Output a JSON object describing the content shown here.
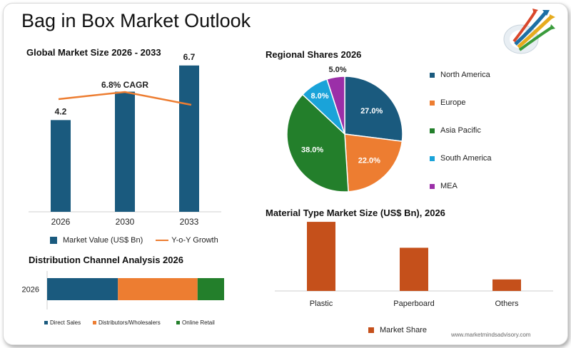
{
  "page": {
    "title": "Bag in Box Market Outlook",
    "footer": "www.marketmindsadvisory.com"
  },
  "colors": {
    "bar": "#1a5a7e",
    "growth_line": "#ed7d31",
    "north_america": "#1a5a7e",
    "europe": "#ed7d31",
    "asia_pacific": "#237f2b",
    "south_america": "#1aa3d9",
    "mea": "#9b2fa8",
    "material": "#c5501b"
  },
  "chart_data": [
    {
      "id": "market_size",
      "type": "bar",
      "title": "Global Market Size 2026 - 2033",
      "categories": [
        "2026",
        "2030",
        "2033"
      ],
      "series": [
        {
          "name": "Market Value (US$ Bn)",
          "values": [
            4.2,
            5.5,
            6.7
          ]
        },
        {
          "name": "Y-o-Y Growth",
          "type": "line"
        }
      ],
      "data_labels": [
        "4.2",
        "",
        "6.7"
      ],
      "annotation": "6.8% CAGR",
      "ylim": [
        0,
        8
      ]
    },
    {
      "id": "regional_shares",
      "type": "pie",
      "title": "Regional Shares 2026",
      "labels": [
        "North America",
        "Europe",
        "Asia Pacific",
        "South America",
        "MEA"
      ],
      "values": [
        27.0,
        22.0,
        38.0,
        8.0,
        5.0
      ],
      "value_labels": [
        "27.0%",
        "22.0%",
        "38.0%",
        "8.0%",
        "5.0%"
      ],
      "legend_position": "right"
    },
    {
      "id": "distribution_channel",
      "type": "bar",
      "orientation": "horizontal-stacked",
      "title": "Distribution Channel Analysis 2026",
      "categories": [
        "2026"
      ],
      "series": [
        {
          "name": "Direct Sales",
          "values": [
            40
          ]
        },
        {
          "name": "Distributors/Wholesalers",
          "values": [
            45
          ]
        },
        {
          "name": "Online Retail",
          "values": [
            15
          ]
        }
      ],
      "legend_position": "bottom"
    },
    {
      "id": "material_type",
      "type": "bar",
      "title": "Material Type Market Size (US$ Bn), 2026",
      "categories": [
        "Plastic",
        "Paperboard",
        "Others"
      ],
      "series": [
        {
          "name": "Market Share",
          "values": [
            2.4,
            1.5,
            0.4
          ]
        }
      ],
      "ylim": [
        0,
        2.6
      ],
      "legend_position": "bottom"
    }
  ]
}
